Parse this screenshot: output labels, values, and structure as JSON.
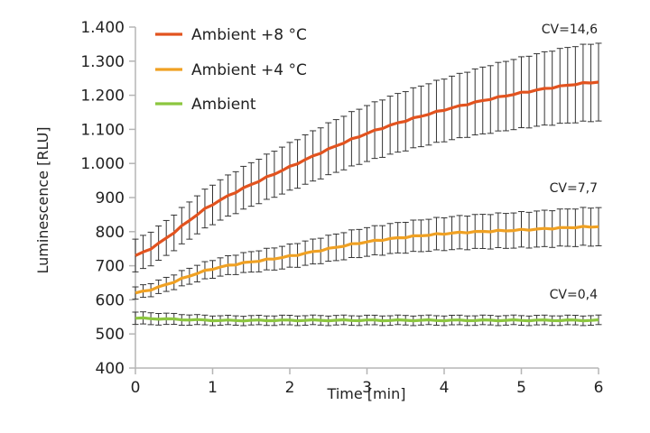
{
  "chart_data": {
    "type": "line",
    "title": "",
    "xlabel": "Time [min]",
    "ylabel": "Luminescence [RLU]",
    "xlim": [
      0,
      6
    ],
    "ylim": [
      400,
      1400
    ],
    "xticks": [
      "0",
      "1",
      "2",
      "3",
      "4",
      "5",
      "6"
    ],
    "yticks": [
      "400",
      "500",
      "600",
      "700",
      "800",
      "900",
      "1.000",
      "1.100",
      "1.200",
      "1.300",
      "1.400"
    ],
    "grid": false,
    "legend_position": "top-left",
    "error_bars": true,
    "x": [
      0,
      1,
      2,
      3,
      4,
      5,
      6
    ],
    "series": [
      {
        "name": "Ambient +8 °C",
        "color": "#e2531f",
        "values": [
          730,
          880,
          990,
          1088,
          1157,
          1207,
          1239
        ],
        "error": [
          48,
          58,
          70,
          82,
          92,
          104,
          114
        ],
        "cv_label": "CV=14,6"
      },
      {
        "name": "Ambient +4 °C",
        "color": "#f0a123",
        "values": [
          620,
          691,
          728,
          770,
          794,
          805,
          815
        ],
        "error": [
          18,
          26,
          34,
          42,
          48,
          52,
          56
        ],
        "cv_label": "CV=7,7"
      },
      {
        "name": "Ambient",
        "color": "#8cc63f",
        "values": [
          546,
          540,
          540,
          540,
          540,
          540,
          540
        ],
        "error": [
          18,
          14,
          14,
          14,
          14,
          14,
          14
        ],
        "cv_label": "CV=0,4"
      }
    ]
  }
}
